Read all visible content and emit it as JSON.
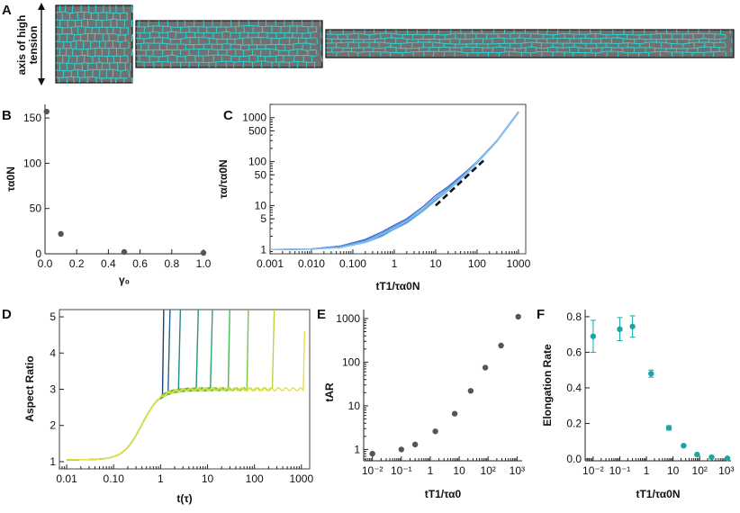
{
  "panel_labels": {
    "a": "A",
    "b": "B",
    "c": "C",
    "d": "D",
    "e": "E",
    "f": "F"
  },
  "colors": {
    "tissue_bg": "#707070",
    "cell_edge": "#2ed4d4",
    "dot": "#555555",
    "teal": "#1aa6a6",
    "fit_line": "#111111"
  },
  "panel_a": {
    "arrow_label_line1": "axis of high",
    "arrow_label_line2": "tension",
    "strips": 3
  },
  "chart_data": [
    {
      "panel": "B",
      "type": "scatter",
      "xlabel": "γ₀",
      "ylabel": "τα0N",
      "xlim": [
        0,
        1
      ],
      "ylim": [
        0,
        165
      ],
      "x_ticks": [
        0,
        0.2,
        0.4,
        0.6,
        0.8,
        1.0
      ],
      "x_tick_labels": [
        "0.0",
        "0.2",
        "0.4",
        "0.6",
        "0.8",
        "1.0"
      ],
      "y_ticks": [
        0,
        50,
        100,
        150
      ],
      "y_tick_labels": [
        "0",
        "50",
        "100",
        "150"
      ],
      "x": [
        0.01,
        0.1,
        0.5,
        1.0
      ],
      "y": [
        157,
        22,
        2,
        1
      ]
    },
    {
      "panel": "C",
      "type": "line",
      "xlabel": "tT1/τα0N",
      "ylabel": "τα/τα0N",
      "xscale": "log",
      "yscale": "log",
      "xlim": [
        0.001,
        1500
      ],
      "ylim": [
        0.8,
        2000
      ],
      "x_ticks": [
        0.001,
        0.01,
        0.1,
        1,
        10,
        100,
        1000
      ],
      "x_tick_labels": [
        "0.001",
        "0.010",
        "0.100",
        "1",
        "10",
        "100",
        "1000"
      ],
      "y_ticks": [
        1,
        5,
        10,
        50,
        100,
        500,
        1000
      ],
      "y_tick_labels": [
        "1",
        "5",
        "10",
        "50",
        "100",
        "500",
        "1000"
      ],
      "series": [
        {
          "name": "s1",
          "color": "#2b4aa8",
          "x": [
            0.001,
            0.01,
            0.05,
            0.2,
            0.5,
            1,
            2,
            5,
            10,
            20,
            50,
            100,
            300,
            1000
          ],
          "y": [
            1,
            1.02,
            1.15,
            1.5,
            2.1,
            3,
            4.2,
            8,
            14,
            24,
            50,
            95,
            290,
            1300
          ]
        },
        {
          "name": "s2",
          "color": "#3a6fd0",
          "x": [
            0.001,
            0.01,
            0.05,
            0.2,
            0.5,
            1,
            2,
            5,
            10,
            20,
            50,
            100,
            300,
            1000
          ],
          "y": [
            1,
            1.03,
            1.2,
            1.7,
            2.5,
            3.6,
            5,
            9.5,
            17,
            27,
            55,
            100,
            300,
            1350
          ]
        },
        {
          "name": "s3",
          "color": "#4f8fe0",
          "x": [
            0.001,
            0.01,
            0.05,
            0.2,
            0.5,
            1,
            2,
            5,
            10,
            20,
            50,
            100,
            300,
            1000
          ],
          "y": [
            1,
            1.03,
            1.2,
            1.6,
            2.3,
            3.3,
            4.6,
            8.5,
            15,
            25,
            52,
            98,
            295,
            1320
          ]
        },
        {
          "name": "s4",
          "color": "#6aaae8",
          "x": [
            0.001,
            0.01,
            0.05,
            0.2,
            0.5,
            1,
            2,
            5,
            10,
            20,
            50,
            100,
            300,
            1000
          ],
          "y": [
            1,
            1.02,
            1.1,
            1.45,
            2,
            2.9,
            4,
            7.5,
            13,
            22,
            48,
            92,
            285,
            1290
          ]
        },
        {
          "name": "s5",
          "color": "#8cc4ef",
          "x": [
            0.001,
            0.01,
            0.05,
            0.2,
            0.5,
            1,
            2,
            5,
            10,
            20,
            50,
            100,
            300,
            1000
          ],
          "y": [
            1,
            1.02,
            1.12,
            1.5,
            2.2,
            3.1,
            4.4,
            8.2,
            14.5,
            23,
            50,
            96,
            292,
            1310
          ]
        }
      ],
      "fit": {
        "x": [
          10,
          150
        ],
        "y": [
          10,
          110
        ]
      }
    },
    {
      "panel": "D",
      "type": "line",
      "xlabel": "t(τ)",
      "ylabel": "Aspect Ratio",
      "xscale": "log",
      "xlim": [
        0.007,
        1500
      ],
      "ylim": [
        0.8,
        5.2
      ],
      "x_ticks": [
        0.01,
        0.1,
        1,
        10,
        100,
        1000
      ],
      "x_tick_labels": [
        "0.01",
        "0.10",
        "1",
        "10",
        "100",
        "1000"
      ],
      "y_ticks": [
        1,
        2,
        3,
        4,
        5
      ],
      "y_tick_labels": [
        "1",
        "2",
        "3",
        "4",
        "5"
      ],
      "plateau": 3.0,
      "series": [
        {
          "name": "r1",
          "color": "#1f3f7a",
          "blow_up_at": 1.1
        },
        {
          "name": "r2",
          "color": "#23628a",
          "blow_up_at": 1.5
        },
        {
          "name": "r3",
          "color": "#1f8a8a",
          "blow_up_at": 2.5
        },
        {
          "name": "r4",
          "color": "#1f9a7a",
          "blow_up_at": 6
        },
        {
          "name": "r5",
          "color": "#28a86a",
          "blow_up_at": 12
        },
        {
          "name": "r6",
          "color": "#4ab85a",
          "blow_up_at": 28
        },
        {
          "name": "r7",
          "color": "#7ac64a",
          "blow_up_at": 70
        },
        {
          "name": "r8",
          "color": "#b8d640",
          "blow_up_at": 250
        },
        {
          "name": "r9",
          "color": "#e8e040",
          "blow_up_at": 1100
        }
      ]
    },
    {
      "panel": "E",
      "type": "scatter",
      "xlabel": "tT1/τα0",
      "ylabel": "tAR",
      "xscale": "log",
      "yscale": "log",
      "xlim": [
        0.005,
        1500
      ],
      "ylim": [
        0.55,
        1600
      ],
      "x_ticks": [
        0.01,
        0.1,
        1,
        10,
        100,
        1000
      ],
      "x_tick_labels": [
        "10⁻²",
        "10⁻¹",
        "1",
        "10",
        "10²",
        "10³"
      ],
      "y_ticks": [
        1,
        10,
        100,
        1000
      ],
      "y_tick_labels": [
        "1",
        "10",
        "100",
        "1000"
      ],
      "x": [
        0.01,
        0.1,
        0.3,
        1.5,
        7,
        25,
        80,
        280,
        1100
      ],
      "y": [
        0.8,
        1.0,
        1.3,
        2.6,
        6.6,
        22,
        75,
        240,
        1100
      ]
    },
    {
      "panel": "F",
      "type": "scatter",
      "xlabel": "tT1/τα0N",
      "ylabel": "Elongation Rate",
      "xscale": "log",
      "xlim": [
        0.005,
        1500
      ],
      "ylim": [
        -0.01,
        0.84
      ],
      "x_ticks": [
        0.01,
        0.1,
        1,
        10,
        100,
        1000
      ],
      "x_tick_labels": [
        "10⁻²",
        "10⁻¹",
        "1",
        "10",
        "10²",
        "10³"
      ],
      "y_ticks": [
        0,
        0.2,
        0.4,
        0.6,
        0.8
      ],
      "y_tick_labels": [
        "0.0",
        "0.2",
        "0.4",
        "0.6",
        "0.8"
      ],
      "x": [
        0.01,
        0.1,
        0.3,
        1.5,
        7,
        25,
        80,
        280,
        1100
      ],
      "y": [
        0.69,
        0.73,
        0.745,
        0.48,
        0.175,
        0.075,
        0.025,
        0.01,
        0.004
      ],
      "err": [
        0.09,
        0.065,
        0.06,
        0.02,
        0.012,
        0.006,
        0.003,
        0.002,
        0.001
      ]
    }
  ]
}
